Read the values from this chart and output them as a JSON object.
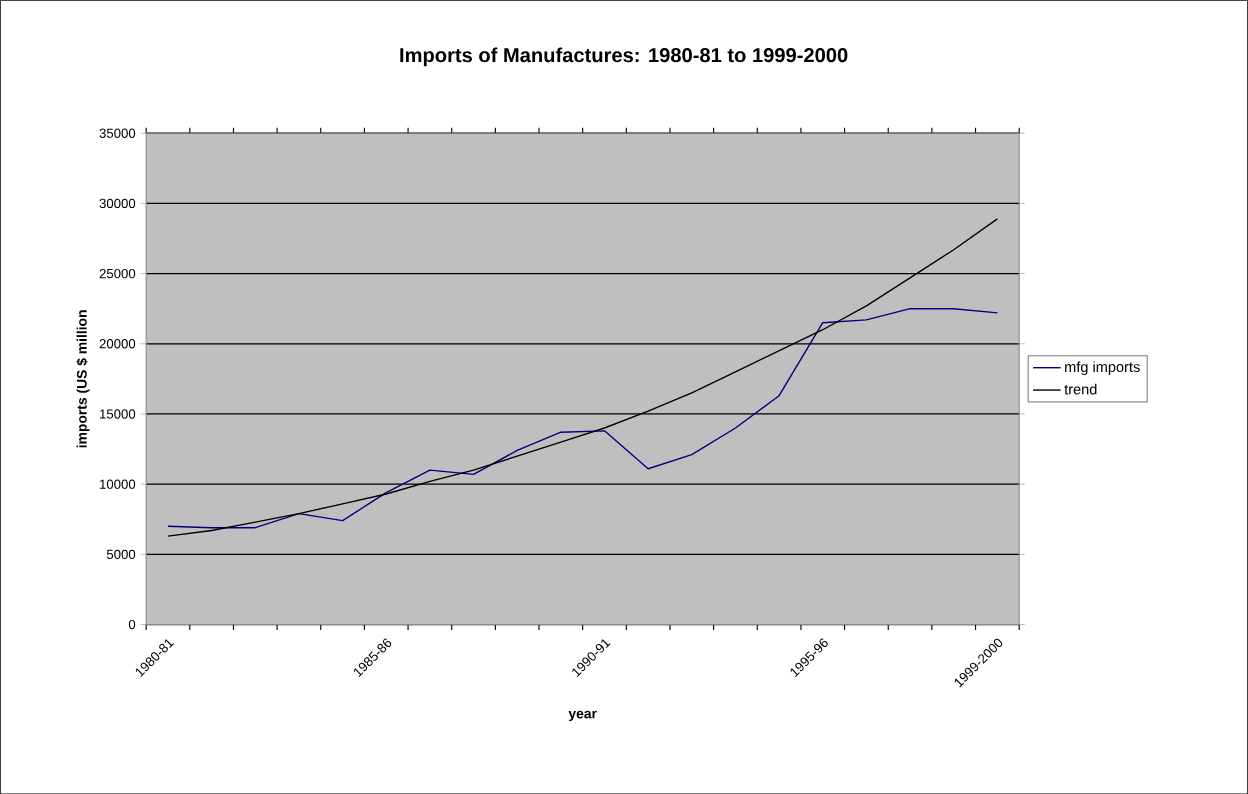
{
  "chart_data": {
    "type": "line",
    "title": "Imports of Manufactures: 1980-81 to 1999-2000",
    "xlabel": "year",
    "ylabel": "imports (US $ million",
    "categories": [
      "1980-81",
      null,
      null,
      null,
      null,
      "1985-86",
      null,
      null,
      null,
      null,
      "1990-91",
      null,
      null,
      null,
      null,
      "1995-96",
      null,
      null,
      null,
      "1999-2000"
    ],
    "series": [
      {
        "name": "mfg imports",
        "color": "#000080",
        "values": [
          7000,
          6900,
          6900,
          7900,
          7400,
          9400,
          11000,
          10700,
          12400,
          13700,
          13800,
          11100,
          12100,
          14000,
          16300,
          21500,
          21700,
          22500,
          22500,
          22200
        ]
      },
      {
        "name": "trend",
        "color": "#000000",
        "values": [
          6300,
          6700,
          7300,
          7900,
          8600,
          9300,
          10200,
          11000,
          12000,
          13000,
          14000,
          15200,
          16500,
          18000,
          19500,
          21000,
          22700,
          24700,
          26700,
          28900
        ]
      }
    ],
    "ylim": [
      0,
      35000
    ],
    "yticks": [
      0,
      5000,
      10000,
      15000,
      20000,
      25000,
      30000,
      35000
    ],
    "grid": "y",
    "legend": "right",
    "marker": "none",
    "line_style": "solid"
  }
}
